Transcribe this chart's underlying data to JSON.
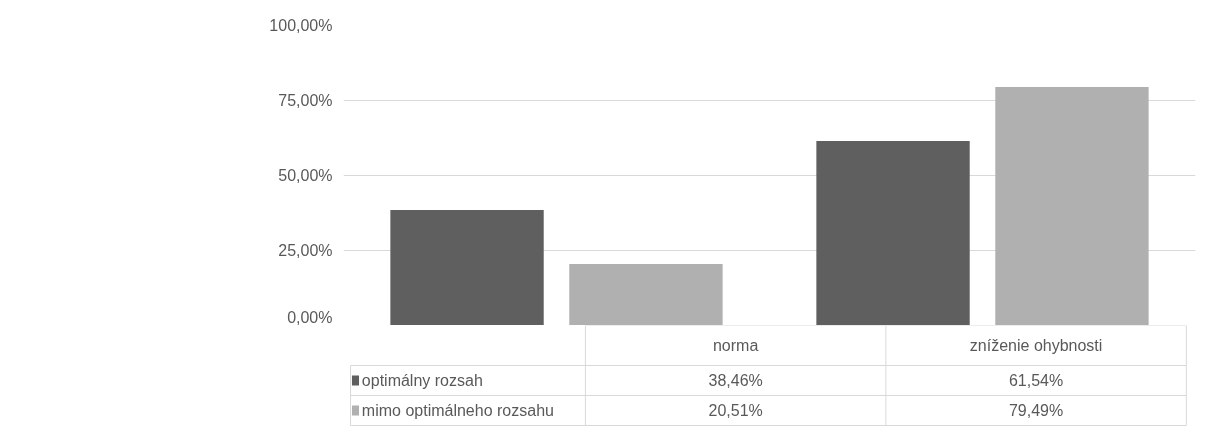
{
  "chart_data": {
    "type": "bar",
    "categories": [
      "norma",
      "zníženie ohybnosti"
    ],
    "series": [
      {
        "name": "optimálny rozsah",
        "color": "#5f5f5f",
        "values": [
          38.46,
          61.54
        ],
        "value_labels": [
          "38,46%",
          "61,54%"
        ]
      },
      {
        "name": "mimo optimálneho rozsahu",
        "color": "#b0b0b0",
        "values": [
          20.51,
          79.49
        ],
        "value_labels": [
          "20,51%",
          "79,49%"
        ]
      }
    ],
    "ylim": [
      0,
      100
    ],
    "yticks": [
      {
        "value": 0,
        "label": "0,00%"
      },
      {
        "value": 25,
        "label": "25,00%"
      },
      {
        "value": 50,
        "label": "50,00%"
      },
      {
        "value": 75,
        "label": "75,00%"
      },
      {
        "value": 100,
        "label": "100,00%"
      }
    ],
    "grid": "y",
    "legend": "bottom"
  }
}
